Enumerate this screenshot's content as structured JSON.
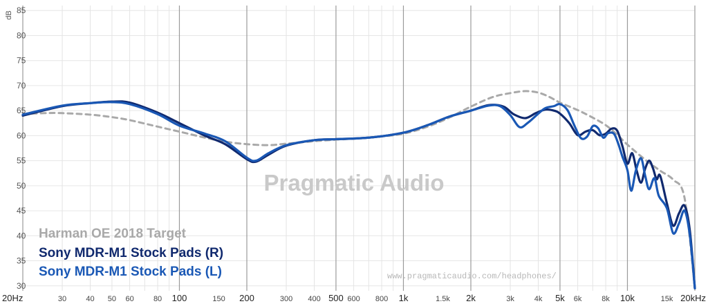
{
  "chart_data": {
    "type": "line",
    "title": "",
    "xscale": "log",
    "xlim": [
      20,
      20000
    ],
    "ylim": [
      29,
      86
    ],
    "ylabel": "dB",
    "y_ticks": [
      30,
      35,
      40,
      45,
      50,
      55,
      60,
      65,
      70,
      75,
      80,
      85
    ],
    "x_ticks": [
      {
        "value": 20,
        "label": "20Hz",
        "major": true
      },
      {
        "value": 30,
        "label": "30",
        "major": false
      },
      {
        "value": 40,
        "label": "40",
        "major": false
      },
      {
        "value": 50,
        "label": "50",
        "major": false
      },
      {
        "value": 60,
        "label": "60",
        "major": false
      },
      {
        "value": 80,
        "label": "80",
        "major": false
      },
      {
        "value": 100,
        "label": "100",
        "major": true
      },
      {
        "value": 150,
        "label": "150",
        "major": false
      },
      {
        "value": 200,
        "label": "200",
        "major": true
      },
      {
        "value": 300,
        "label": "300",
        "major": false
      },
      {
        "value": 400,
        "label": "400",
        "major": false
      },
      {
        "value": 500,
        "label": "500",
        "major": true
      },
      {
        "value": 600,
        "label": "600",
        "major": false
      },
      {
        "value": 800,
        "label": "800",
        "major": false
      },
      {
        "value": 1000,
        "label": "1k",
        "major": true
      },
      {
        "value": 1500,
        "label": "1.5k",
        "major": false
      },
      {
        "value": 2000,
        "label": "2k",
        "major": true
      },
      {
        "value": 3000,
        "label": "3k",
        "major": false
      },
      {
        "value": 4000,
        "label": "4k",
        "major": false
      },
      {
        "value": 5000,
        "label": "5k",
        "major": true
      },
      {
        "value": 6000,
        "label": "6k",
        "major": false
      },
      {
        "value": 8000,
        "label": "8k",
        "major": false
      },
      {
        "value": 10000,
        "label": "10k",
        "major": true
      },
      {
        "value": 15000,
        "label": "15k",
        "major": false
      },
      {
        "value": 20000,
        "label": "20kHz",
        "major": true
      }
    ],
    "grid": true,
    "legend_position": "bottom-left",
    "series": [
      {
        "name": "Harman OE 2018 Target",
        "color": "#a9a9a9",
        "dashed": true,
        "points": [
          [
            20,
            64.3
          ],
          [
            25,
            64.5
          ],
          [
            30,
            64.5
          ],
          [
            40,
            64.2
          ],
          [
            50,
            63.7
          ],
          [
            60,
            63.1
          ],
          [
            80,
            61.8
          ],
          [
            100,
            60.8
          ],
          [
            130,
            59.6
          ],
          [
            160,
            58.8
          ],
          [
            200,
            58.3
          ],
          [
            250,
            58.1
          ],
          [
            300,
            58.4
          ],
          [
            400,
            58.9
          ],
          [
            500,
            59.2
          ],
          [
            700,
            59.6
          ],
          [
            1000,
            60.4
          ],
          [
            1300,
            61.9
          ],
          [
            1600,
            63.6
          ],
          [
            2000,
            65.8
          ],
          [
            2500,
            67.7
          ],
          [
            3000,
            68.5
          ],
          [
            3500,
            68.9
          ],
          [
            4000,
            68.6
          ],
          [
            4500,
            67.7
          ],
          [
            5000,
            66.6
          ],
          [
            6000,
            65.1
          ],
          [
            7000,
            63.6
          ],
          [
            8000,
            62.1
          ],
          [
            9000,
            60.2
          ],
          [
            10000,
            58.2
          ],
          [
            12000,
            55.2
          ],
          [
            14000,
            53.0
          ],
          [
            16000,
            51.2
          ],
          [
            18000,
            47.5
          ],
          [
            20000,
            29.5
          ]
        ]
      },
      {
        "name": "Sony MDR-M1 Stock Pads (R)",
        "color": "#10296e",
        "dashed": false,
        "points": [
          [
            20,
            64.0
          ],
          [
            30,
            65.9
          ],
          [
            40,
            66.5
          ],
          [
            50,
            66.8
          ],
          [
            60,
            66.6
          ],
          [
            80,
            64.6
          ],
          [
            100,
            62.5
          ],
          [
            130,
            60.0
          ],
          [
            160,
            58.3
          ],
          [
            200,
            55.3
          ],
          [
            220,
            54.8
          ],
          [
            250,
            56.2
          ],
          [
            300,
            58.0
          ],
          [
            400,
            59.1
          ],
          [
            500,
            59.3
          ],
          [
            700,
            59.6
          ],
          [
            1000,
            60.6
          ],
          [
            1300,
            62.2
          ],
          [
            1600,
            63.8
          ],
          [
            2000,
            65.0
          ],
          [
            2400,
            66.1
          ],
          [
            2800,
            65.8
          ],
          [
            3100,
            64.3
          ],
          [
            3500,
            63.5
          ],
          [
            3900,
            64.5
          ],
          [
            4300,
            65.2
          ],
          [
            4700,
            65.0
          ],
          [
            5000,
            64.4
          ],
          [
            5500,
            62.5
          ],
          [
            6000,
            60.1
          ],
          [
            6500,
            60.8
          ],
          [
            7000,
            61.1
          ],
          [
            7500,
            60.1
          ],
          [
            8000,
            60.4
          ],
          [
            8500,
            61.4
          ],
          [
            9000,
            61.0
          ],
          [
            9500,
            57.9
          ],
          [
            10000,
            54.4
          ],
          [
            10500,
            56.5
          ],
          [
            11000,
            53.0
          ],
          [
            11500,
            50.6
          ],
          [
            12000,
            53.4
          ],
          [
            12500,
            55.0
          ],
          [
            13000,
            53.5
          ],
          [
            13500,
            51.3
          ],
          [
            14000,
            52.0
          ],
          [
            15000,
            46.5
          ],
          [
            16000,
            42.0
          ],
          [
            17000,
            44.5
          ],
          [
            18000,
            46.0
          ],
          [
            19000,
            41.0
          ],
          [
            20000,
            29.5
          ]
        ]
      },
      {
        "name": "Sony MDR-M1 Stock Pads (L)",
        "color": "#1a58b5",
        "dashed": false,
        "points": [
          [
            20,
            64.2
          ],
          [
            30,
            66.0
          ],
          [
            40,
            66.5
          ],
          [
            50,
            66.7
          ],
          [
            60,
            66.3
          ],
          [
            80,
            64.3
          ],
          [
            100,
            62.0
          ],
          [
            130,
            60.4
          ],
          [
            160,
            58.9
          ],
          [
            200,
            55.6
          ],
          [
            220,
            55.0
          ],
          [
            250,
            56.5
          ],
          [
            300,
            58.1
          ],
          [
            400,
            59.1
          ],
          [
            500,
            59.3
          ],
          [
            700,
            59.6
          ],
          [
            1000,
            60.6
          ],
          [
            1300,
            62.2
          ],
          [
            1600,
            63.8
          ],
          [
            2000,
            65.0
          ],
          [
            2400,
            66.0
          ],
          [
            2700,
            65.9
          ],
          [
            3000,
            64.1
          ],
          [
            3300,
            61.7
          ],
          [
            3600,
            62.6
          ],
          [
            4000,
            64.4
          ],
          [
            4300,
            65.5
          ],
          [
            4700,
            65.9
          ],
          [
            5000,
            66.3
          ],
          [
            5400,
            65.1
          ],
          [
            5800,
            62.0
          ],
          [
            6200,
            59.5
          ],
          [
            6600,
            59.8
          ],
          [
            7000,
            61.9
          ],
          [
            7400,
            61.5
          ],
          [
            7800,
            59.6
          ],
          [
            8200,
            60.5
          ],
          [
            8700,
            60.4
          ],
          [
            9100,
            58.4
          ],
          [
            9500,
            55.8
          ],
          [
            10000,
            53.1
          ],
          [
            10400,
            49.0
          ],
          [
            10900,
            53.0
          ],
          [
            11500,
            55.5
          ],
          [
            12000,
            52.0
          ],
          [
            12500,
            49.3
          ],
          [
            13200,
            51.5
          ],
          [
            13800,
            48.0
          ],
          [
            15000,
            45.5
          ],
          [
            16000,
            40.5
          ],
          [
            17000,
            42.5
          ],
          [
            18000,
            45.0
          ],
          [
            19000,
            40.0
          ],
          [
            20000,
            29.5
          ]
        ]
      }
    ]
  },
  "watermark": "Pragmatic Audio",
  "source_url": "www.pragmaticaudio.com/headphones/"
}
